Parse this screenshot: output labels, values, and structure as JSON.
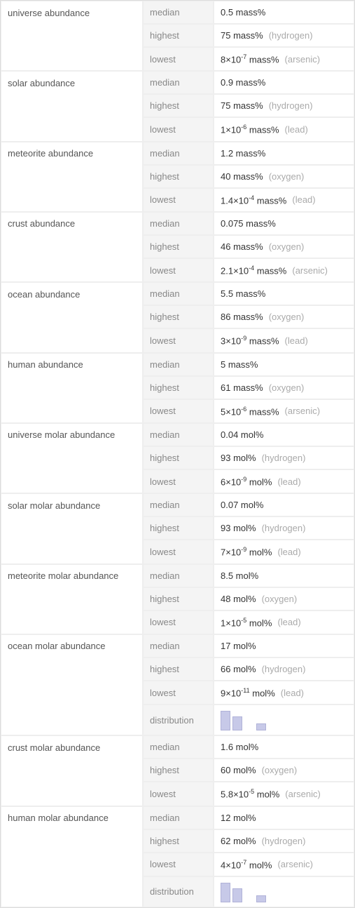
{
  "bar_color": "#c7c9e8",
  "bar_border": "#b0b2d8",
  "groups": [
    {
      "label": "universe abundance",
      "rows": [
        {
          "stat": "median",
          "value": "0.5 mass%",
          "qual": ""
        },
        {
          "stat": "highest",
          "value": "75 mass%",
          "qual": "(hydrogen)"
        },
        {
          "stat": "lowest",
          "value_html": "8×10<sup>-7</sup> mass%",
          "qual": "(arsenic)"
        }
      ]
    },
    {
      "label": "solar abundance",
      "rows": [
        {
          "stat": "median",
          "value": "0.9 mass%",
          "qual": ""
        },
        {
          "stat": "highest",
          "value": "75 mass%",
          "qual": "(hydrogen)"
        },
        {
          "stat": "lowest",
          "value_html": "1×10<sup>-6</sup> mass%",
          "qual": "(lead)"
        }
      ]
    },
    {
      "label": "meteorite abundance",
      "rows": [
        {
          "stat": "median",
          "value": "1.2 mass%",
          "qual": ""
        },
        {
          "stat": "highest",
          "value": "40 mass%",
          "qual": "(oxygen)"
        },
        {
          "stat": "lowest",
          "value_html": "1.4×10<sup>-4</sup> mass%",
          "qual": "(lead)"
        }
      ]
    },
    {
      "label": "crust abundance",
      "rows": [
        {
          "stat": "median",
          "value": "0.075 mass%",
          "qual": ""
        },
        {
          "stat": "highest",
          "value": "46 mass%",
          "qual": "(oxygen)"
        },
        {
          "stat": "lowest",
          "value_html": "2.1×10<sup>-4</sup> mass%",
          "qual": "(arsenic)"
        }
      ]
    },
    {
      "label": "ocean abundance",
      "rows": [
        {
          "stat": "median",
          "value": "5.5 mass%",
          "qual": ""
        },
        {
          "stat": "highest",
          "value": "86 mass%",
          "qual": "(oxygen)"
        },
        {
          "stat": "lowest",
          "value_html": "3×10<sup>-9</sup> mass%",
          "qual": "(lead)"
        }
      ]
    },
    {
      "label": "human abundance",
      "rows": [
        {
          "stat": "median",
          "value": "5 mass%",
          "qual": ""
        },
        {
          "stat": "highest",
          "value": "61 mass%",
          "qual": "(oxygen)"
        },
        {
          "stat": "lowest",
          "value_html": "5×10<sup>-6</sup> mass%",
          "qual": "(arsenic)"
        }
      ]
    },
    {
      "label": "universe molar abundance",
      "rows": [
        {
          "stat": "median",
          "value": "0.04 mol%",
          "qual": ""
        },
        {
          "stat": "highest",
          "value": "93 mol%",
          "qual": "(hydrogen)"
        },
        {
          "stat": "lowest",
          "value_html": "6×10<sup>-9</sup> mol%",
          "qual": "(lead)"
        }
      ]
    },
    {
      "label": "solar molar abundance",
      "rows": [
        {
          "stat": "median",
          "value": "0.07 mol%",
          "qual": ""
        },
        {
          "stat": "highest",
          "value": "93 mol%",
          "qual": "(hydrogen)"
        },
        {
          "stat": "lowest",
          "value_html": "7×10<sup>-9</sup> mol%",
          "qual": "(lead)"
        }
      ]
    },
    {
      "label": "meteorite molar abundance",
      "rows": [
        {
          "stat": "median",
          "value": "8.5 mol%",
          "qual": ""
        },
        {
          "stat": "highest",
          "value": "48 mol%",
          "qual": "(oxygen)"
        },
        {
          "stat": "lowest",
          "value_html": "1×10<sup>-5</sup> mol%",
          "qual": "(lead)"
        }
      ]
    },
    {
      "label": "ocean molar abundance",
      "rows": [
        {
          "stat": "median",
          "value": "17 mol%",
          "qual": ""
        },
        {
          "stat": "highest",
          "value": "66 mol%",
          "qual": "(hydrogen)"
        },
        {
          "stat": "lowest",
          "value_html": "9×10<sup>-11</sup> mol%",
          "qual": "(lead)"
        },
        {
          "stat": "distribution",
          "dist": [
            28,
            20,
            0,
            10
          ]
        }
      ]
    },
    {
      "label": "crust molar abundance",
      "rows": [
        {
          "stat": "median",
          "value": "1.6 mol%",
          "qual": ""
        },
        {
          "stat": "highest",
          "value": "60 mol%",
          "qual": "(oxygen)"
        },
        {
          "stat": "lowest",
          "value_html": "5.8×10<sup>-5</sup> mol%",
          "qual": "(arsenic)"
        }
      ]
    },
    {
      "label": "human molar abundance",
      "rows": [
        {
          "stat": "median",
          "value": "12 mol%",
          "qual": ""
        },
        {
          "stat": "highest",
          "value": "62 mol%",
          "qual": "(hydrogen)"
        },
        {
          "stat": "lowest",
          "value_html": "4×10<sup>-7</sup> mol%",
          "qual": "(arsenic)"
        },
        {
          "stat": "distribution",
          "dist": [
            28,
            20,
            0,
            10
          ]
        }
      ]
    }
  ]
}
